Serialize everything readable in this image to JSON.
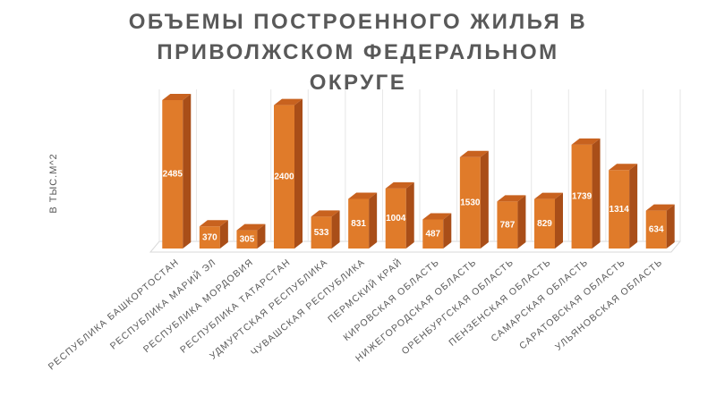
{
  "chart_data": {
    "type": "bar3d",
    "title": "ОБЪЕМЫ ПОСТРОЕННОГО ЖИЛЬЯ В ПРИВОЛЖСКОМ ФЕДЕРАЛЬНОМ ОКРУГЕ",
    "y_label": "В ТЫС.М^2",
    "categories": [
      "РЕСПУБЛИКА БАШКОРТОСТАН",
      "РЕСПУБЛИКА МАРИЙ ЭЛ",
      "РЕСПУБЛИКА МОРДОВИЯ",
      "РЕСПУБЛИКА ТАТАРСТАН",
      "УДМУРТСКАЯ РЕСПУБЛИКА",
      "ЧУВАШСКАЯ РЕСПУБЛИКА",
      "ПЕРМСКИЙ КРАЙ",
      "КИРОВСКАЯ ОБЛАСТЬ",
      "НИЖЕГОРОДСКАЯ ОБЛАСТЬ",
      "ОРЕНБУРГСКАЯ ОБЛАСТЬ",
      "ПЕНЗЕНСКАЯ ОБЛАСТЬ",
      "САМАРСКАЯ ОБЛАСТЬ",
      "САРАТОВСКАЯ ОБЛАСТЬ",
      "УЛЬЯНОВСКАЯ ОБЛАСТЬ"
    ],
    "values": [
      2485,
      370,
      305,
      2400,
      533,
      831,
      1004,
      487,
      1530,
      787,
      829,
      1739,
      1314,
      634
    ],
    "color": "#e07b2a",
    "side_color": "#a94e18",
    "top_color": "#c8621f"
  }
}
